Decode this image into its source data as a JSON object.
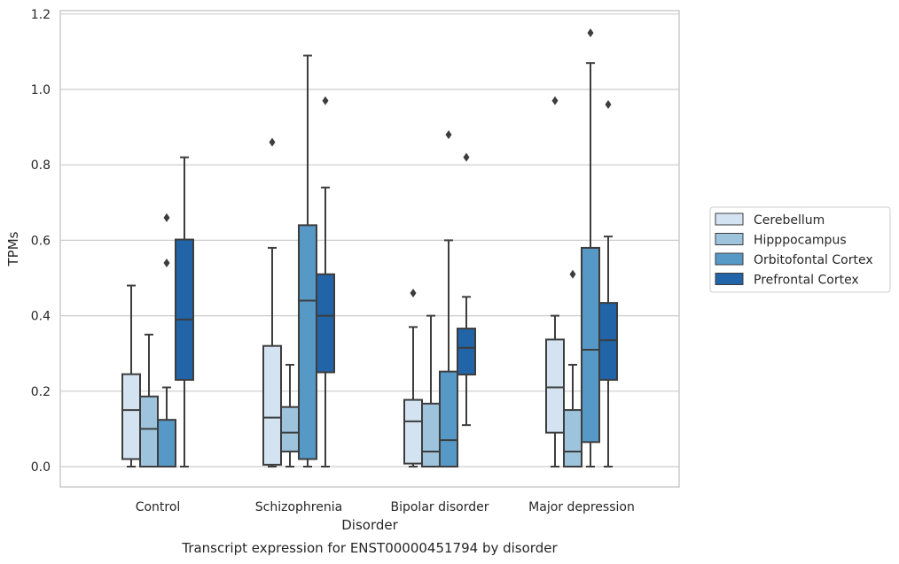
{
  "chart_data": {
    "type": "box",
    "title": "Transcript expression for ENST00000451794 by disorder",
    "xlabel": "Disorder",
    "ylabel": "TPMs",
    "ylim": [
      -0.055,
      1.21
    ],
    "yticks": [
      "0.0",
      "0.2",
      "0.4",
      "0.6",
      "0.8",
      "1.0",
      "1.2"
    ],
    "grid": "horizontal",
    "legend_position": "right",
    "categories": [
      "Control",
      "Schizophrenia",
      "Bipolar disorder",
      "Major depression"
    ],
    "series": [
      {
        "name": "Cerebellum",
        "color": "#d4e3f1",
        "boxes": [
          {
            "q1": 0.02,
            "median": 0.15,
            "q3": 0.245,
            "whisker_low": 0.0,
            "whisker_high": 0.48,
            "outliers": []
          },
          {
            "q1": 0.005,
            "median": 0.13,
            "q3": 0.32,
            "whisker_low": 0.0,
            "whisker_high": 0.58,
            "outliers": [
              0.86
            ]
          },
          {
            "q1": 0.008,
            "median": 0.12,
            "q3": 0.177,
            "whisker_low": 0.0,
            "whisker_high": 0.37,
            "outliers": [
              0.46
            ]
          },
          {
            "q1": 0.09,
            "median": 0.21,
            "q3": 0.337,
            "whisker_low": 0.0,
            "whisker_high": 0.4,
            "outliers": [
              0.97
            ]
          }
        ]
      },
      {
        "name": "Hipppocampus",
        "color": "#9ec4dd",
        "boxes": [
          {
            "q1": 0.0,
            "median": 0.1,
            "q3": 0.186,
            "whisker_low": 0.0,
            "whisker_high": 0.35,
            "outliers": []
          },
          {
            "q1": 0.04,
            "median": 0.09,
            "q3": 0.158,
            "whisker_low": 0.0,
            "whisker_high": 0.27,
            "outliers": []
          },
          {
            "q1": 0.0,
            "median": 0.04,
            "q3": 0.167,
            "whisker_low": 0.0,
            "whisker_high": 0.4,
            "outliers": []
          },
          {
            "q1": 0.0,
            "median": 0.04,
            "q3": 0.15,
            "whisker_low": 0.0,
            "whisker_high": 0.27,
            "outliers": [
              0.51
            ]
          }
        ]
      },
      {
        "name": "Orbitofontal Cortex",
        "color": "#5699c6",
        "boxes": [
          {
            "q1": 0.0,
            "median": 0.0,
            "q3": 0.124,
            "whisker_low": 0.0,
            "whisker_high": 0.21,
            "outliers": [
              0.54,
              0.66
            ]
          },
          {
            "q1": 0.02,
            "median": 0.44,
            "q3": 0.64,
            "whisker_low": 0.0,
            "whisker_high": 1.09,
            "outliers": []
          },
          {
            "q1": 0.0,
            "median": 0.07,
            "q3": 0.252,
            "whisker_low": 0.0,
            "whisker_high": 0.6,
            "outliers": [
              0.88
            ]
          },
          {
            "q1": 0.065,
            "median": 0.31,
            "q3": 0.58,
            "whisker_low": 0.0,
            "whisker_high": 1.07,
            "outliers": [
              1.15
            ]
          }
        ]
      },
      {
        "name": "Prefrontal Cortex",
        "color": "#2264a8",
        "boxes": [
          {
            "q1": 0.23,
            "median": 0.39,
            "q3": 0.602,
            "whisker_low": 0.0,
            "whisker_high": 0.82,
            "outliers": []
          },
          {
            "q1": 0.25,
            "median": 0.4,
            "q3": 0.51,
            "whisker_low": 0.0,
            "whisker_high": 0.74,
            "outliers": [
              0.97
            ]
          },
          {
            "q1": 0.244,
            "median": 0.315,
            "q3": 0.366,
            "whisker_low": 0.11,
            "whisker_high": 0.45,
            "outliers": [
              0.82
            ]
          },
          {
            "q1": 0.23,
            "median": 0.335,
            "q3": 0.434,
            "whisker_low": 0.0,
            "whisker_high": 0.61,
            "outliers": [
              0.96
            ]
          }
        ]
      }
    ]
  }
}
